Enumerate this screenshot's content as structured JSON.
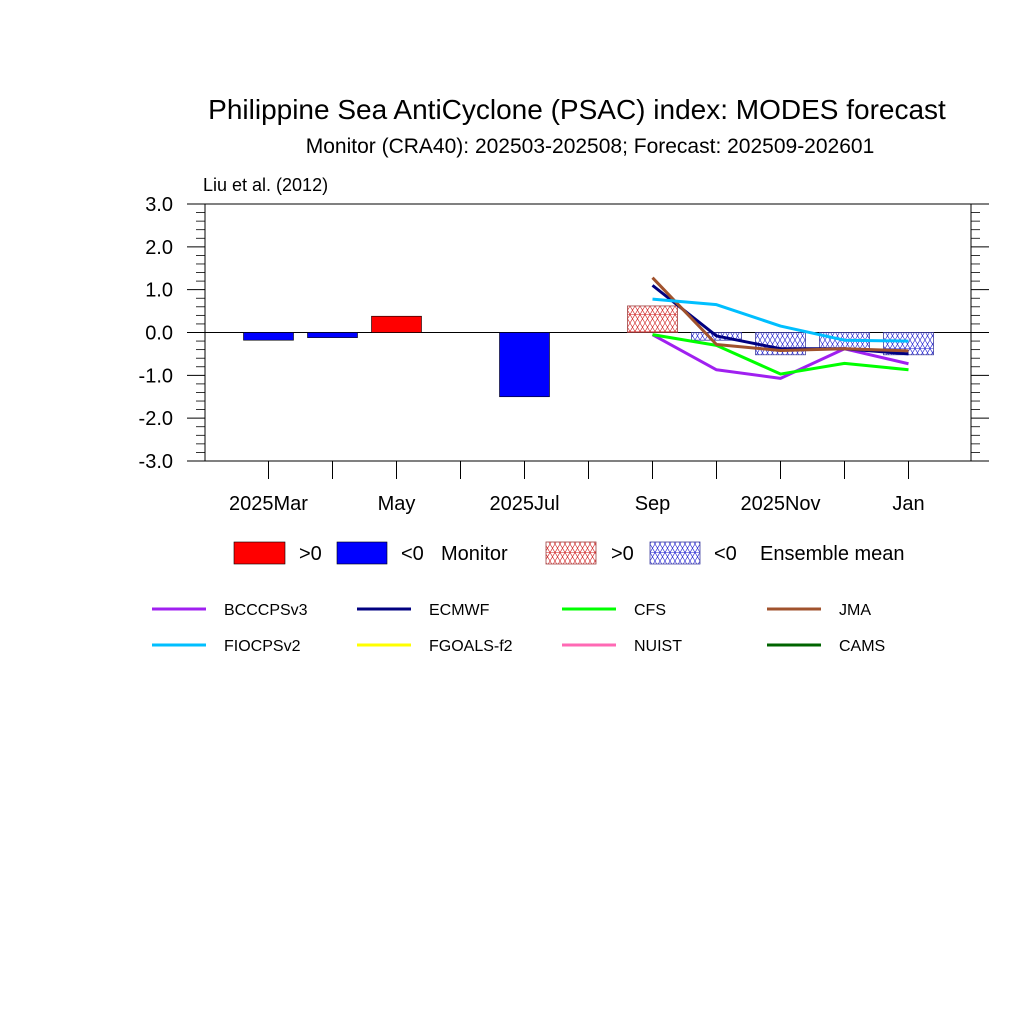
{
  "chart_data": {
    "type": "bar",
    "title": "Philippine Sea AntiCyclone (PSAC) index: MODES forecast",
    "subtitle": "Monitor (CRA40): 202503-202508; Forecast: 202509-202601",
    "note": "Liu et al. (2012)",
    "ylim": [
      -3.0,
      3.0
    ],
    "yticks": [
      "3.0",
      "2.0",
      "1.0",
      "0.0",
      "-1.0",
      "-2.0",
      "-3.0"
    ],
    "ytick_values": [
      3,
      2,
      1,
      0,
      -1,
      -2,
      -3
    ],
    "xtick_labels": [
      {
        "month": 0,
        "label": "2025Mar"
      },
      {
        "month": 2,
        "label": "May"
      },
      {
        "month": 4,
        "label": "2025Jul"
      },
      {
        "month": 6,
        "label": "Sep"
      },
      {
        "month": 8,
        "label": "2025Nov"
      },
      {
        "month": 10,
        "label": "Jan"
      }
    ],
    "months": [
      "2025-03",
      "2025-04",
      "2025-05",
      "2025-06",
      "2025-07",
      "2025-08",
      "2025-09",
      "2025-10",
      "2025-11",
      "2025-12",
      "2026-01"
    ],
    "monitor": [
      {
        "month": "2025-03",
        "value": -0.18
      },
      {
        "month": "2025-04",
        "value": -0.12
      },
      {
        "month": "2025-05",
        "value": 0.38
      },
      {
        "month": "2025-07",
        "value": -1.5
      }
    ],
    "ensemble_mean": [
      {
        "month": "2025-09",
        "value": 0.62
      },
      {
        "month": "2025-10",
        "value": -0.18
      },
      {
        "month": "2025-11",
        "value": -0.52
      },
      {
        "month": "2025-12",
        "value": -0.38
      },
      {
        "month": "2026-01",
        "value": -0.52
      }
    ],
    "series": [
      {
        "name": "BCCCPSv3",
        "color": "#a020f0",
        "x": [
          "2025-09",
          "2025-10",
          "2025-11",
          "2025-12",
          "2026-01"
        ],
        "values": [
          -0.05,
          -0.87,
          -1.07,
          -0.38,
          -0.73
        ]
      },
      {
        "name": "ECMWF",
        "color": "#000080",
        "x": [
          "2025-09",
          "2025-10",
          "2025-11",
          "2025-12",
          "2026-01"
        ],
        "values": [
          1.1,
          -0.08,
          -0.38,
          -0.38,
          -0.5
        ]
      },
      {
        "name": "CFS",
        "color": "#00ff00",
        "x": [
          "2025-09",
          "2025-10",
          "2025-11",
          "2025-12",
          "2026-01"
        ],
        "values": [
          -0.05,
          -0.3,
          -0.97,
          -0.72,
          -0.87
        ]
      },
      {
        "name": "JMA",
        "color": "#a0522d",
        "x": [
          "2025-09",
          "2025-10",
          "2025-11",
          "2025-12",
          "2026-01"
        ],
        "values": [
          1.28,
          -0.28,
          -0.42,
          -0.38,
          -0.43
        ]
      },
      {
        "name": "FIOCPSv2",
        "color": "#00bfff",
        "x": [
          "2025-09",
          "2025-10",
          "2025-11",
          "2025-12",
          "2026-01"
        ],
        "values": [
          0.78,
          0.65,
          0.15,
          -0.18,
          -0.2
        ]
      },
      {
        "name": "FGOALS-f2",
        "color": "#ffff00",
        "x": [],
        "values": []
      },
      {
        "name": "NUIST",
        "color": "#ff69b4",
        "x": [],
        "values": []
      },
      {
        "name": "CAMS",
        "color": "#006400",
        "x": [],
        "values": []
      }
    ],
    "bar_legend": {
      "positive": ">0",
      "negative": "<0",
      "monitor_label": "Monitor",
      "ens_positive": ">0",
      "ens_negative": "<0",
      "ens_label": "Ensemble mean"
    },
    "colors": {
      "positive": "#ff0000",
      "negative": "#0000ff",
      "ens_positive": "#d02020",
      "ens_negative": "#2020d0"
    }
  }
}
